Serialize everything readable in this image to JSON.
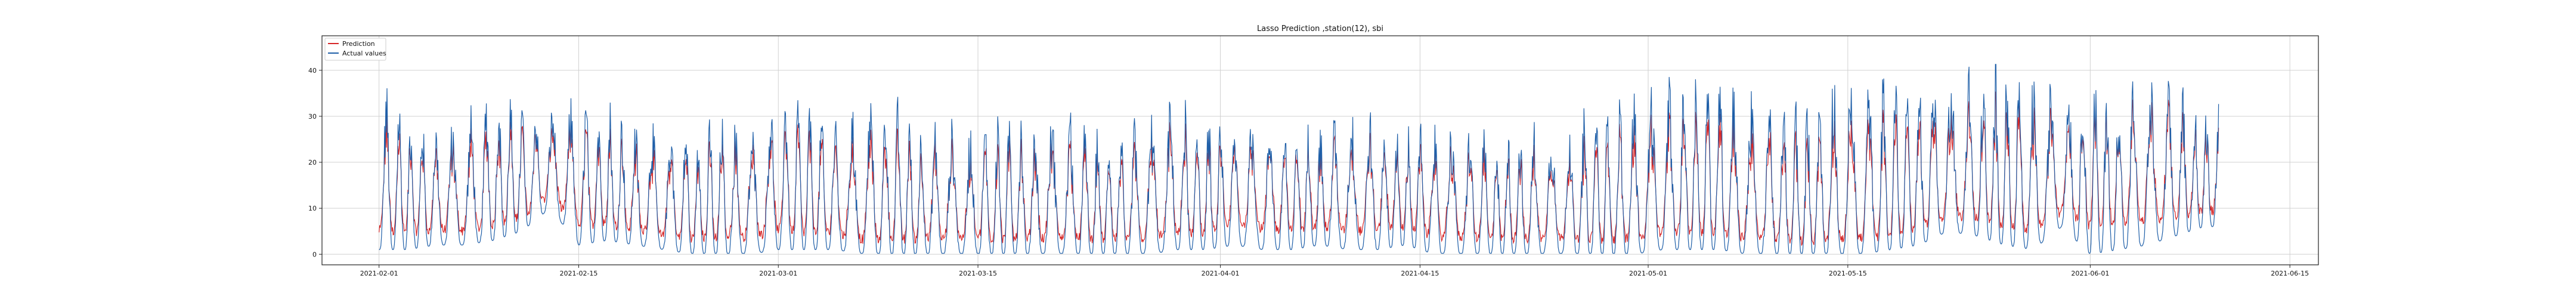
{
  "chart_data": {
    "type": "line",
    "title": "Lasso Prediction ,station(12), sbi",
    "xlabel": "",
    "ylabel": "",
    "x_range": [
      "2021-01-28",
      "2021-06-17"
    ],
    "data_x_range": [
      "2021-02-01",
      "2021-06-10"
    ],
    "ylim": [
      -2.3,
      47.5
    ],
    "xticks": [
      "2021-02-01",
      "2021-02-15",
      "2021-03-01",
      "2021-03-15",
      "2021-04-01",
      "2021-04-15",
      "2021-05-01",
      "2021-05-15",
      "2021-06-01",
      "2021-06-15"
    ],
    "yticks": [
      0,
      10,
      20,
      30,
      40
    ],
    "grid": true,
    "legend_position": "top-left",
    "series": [
      {
        "name": "Prediction",
        "color": "#d62728",
        "x_by_day": [
          "2021-02-01",
          "2021-02-03",
          "2021-02-05",
          "2021-02-07",
          "2021-02-09",
          "2021-02-11",
          "2021-02-13",
          "2021-02-15",
          "2021-02-17",
          "2021-02-19",
          "2021-02-21",
          "2021-02-23",
          "2021-02-25",
          "2021-02-27",
          "2021-03-01",
          "2021-03-03",
          "2021-03-05",
          "2021-03-07",
          "2021-03-09",
          "2021-03-11",
          "2021-03-13",
          "2021-03-15",
          "2021-03-17",
          "2021-03-19",
          "2021-03-21",
          "2021-03-23",
          "2021-03-25",
          "2021-03-27",
          "2021-03-29",
          "2021-03-31",
          "2021-04-02",
          "2021-04-04",
          "2021-04-06",
          "2021-04-08",
          "2021-04-10",
          "2021-04-12",
          "2021-04-14",
          "2021-04-16",
          "2021-04-18",
          "2021-04-20",
          "2021-04-22",
          "2021-04-24",
          "2021-04-26",
          "2021-04-28",
          "2021-04-30",
          "2021-05-02",
          "2021-05-04",
          "2021-05-06",
          "2021-05-08",
          "2021-05-10",
          "2021-05-12",
          "2021-05-14",
          "2021-05-16",
          "2021-05-18",
          "2021-05-20",
          "2021-05-22",
          "2021-05-24",
          "2021-05-26",
          "2021-05-28",
          "2021-05-30",
          "2021-06-01",
          "2021-06-03",
          "2021-06-05",
          "2021-06-07",
          "2021-06-09"
        ],
        "mean_values": [
          16,
          15,
          14,
          13,
          15,
          17,
          20,
          18,
          16,
          14,
          12,
          12,
          13,
          13,
          17,
          15,
          14,
          11,
          11,
          12,
          12,
          13,
          11,
          12,
          12,
          12,
          11,
          13,
          14,
          14,
          18,
          17,
          16,
          16,
          15,
          16,
          17,
          14,
          13,
          12,
          12,
          12,
          12,
          11,
          12,
          14,
          16,
          14,
          12,
          11,
          10,
          10,
          12,
          12,
          16,
          16,
          18,
          17,
          16,
          18,
          22,
          21,
          20,
          19,
          18
        ]
      },
      {
        "name": "Actual values",
        "color": "#1f5fa8",
        "x_by_day": [
          "2021-02-01",
          "2021-02-03",
          "2021-02-05",
          "2021-02-07",
          "2021-02-09",
          "2021-02-11",
          "2021-02-13",
          "2021-02-15",
          "2021-02-17",
          "2021-02-19",
          "2021-02-21",
          "2021-02-23",
          "2021-02-25",
          "2021-02-27",
          "2021-03-01",
          "2021-03-03",
          "2021-03-05",
          "2021-03-07",
          "2021-03-09",
          "2021-03-11",
          "2021-03-13",
          "2021-03-15",
          "2021-03-17",
          "2021-03-19",
          "2021-03-21",
          "2021-03-23",
          "2021-03-25",
          "2021-03-27",
          "2021-03-29",
          "2021-03-31",
          "2021-04-02",
          "2021-04-04",
          "2021-04-06",
          "2021-04-08",
          "2021-04-10",
          "2021-04-12",
          "2021-04-14",
          "2021-04-16",
          "2021-04-18",
          "2021-04-20",
          "2021-04-22",
          "2021-04-24",
          "2021-04-26",
          "2021-04-28",
          "2021-04-30",
          "2021-05-02",
          "2021-05-04",
          "2021-05-06",
          "2021-05-08",
          "2021-05-10",
          "2021-05-12",
          "2021-05-14",
          "2021-05-16",
          "2021-05-18",
          "2021-05-20",
          "2021-05-22",
          "2021-05-24",
          "2021-05-26",
          "2021-05-28",
          "2021-05-30",
          "2021-06-01",
          "2021-06-03",
          "2021-06-05",
          "2021-06-07",
          "2021-06-09"
        ],
        "daily_max": [
          40,
          35,
          30,
          31,
          39,
          35,
          33,
          36,
          35,
          30,
          31,
          30,
          32,
          28,
          38,
          35,
          30,
          36,
          36,
          30,
          30,
          29,
          33,
          31,
          32,
          30,
          29,
          31,
          36,
          33,
          29,
          32,
          30,
          30,
          32,
          33,
          29,
          31,
          30,
          28,
          29,
          30,
          31,
          36,
          37,
          39,
          41,
          45,
          36,
          37,
          35,
          43,
          40,
          42,
          42,
          44,
          42,
          44,
          40,
          39,
          42,
          40,
          39,
          38,
          34
        ],
        "daily_min": [
          1,
          1,
          2,
          2,
          3,
          5,
          10,
          2,
          3,
          2,
          1,
          0,
          0,
          0,
          1,
          1,
          1,
          0,
          0,
          0,
          0,
          0,
          0,
          0,
          0,
          0,
          0,
          0,
          1,
          1,
          2,
          1,
          1,
          2,
          1,
          1,
          2,
          0,
          0,
          0,
          0,
          0,
          0,
          0,
          0,
          1,
          1,
          1,
          0,
          0,
          0,
          0,
          0,
          1,
          2,
          5,
          4,
          2,
          1,
          6,
          0,
          1,
          2,
          4,
          6
        ]
      }
    ]
  }
}
